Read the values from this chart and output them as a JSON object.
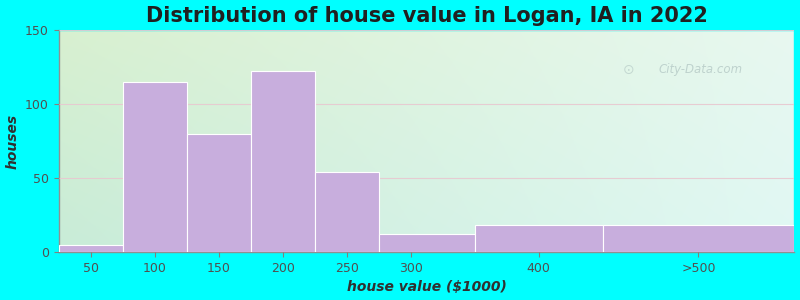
{
  "title": "Distribution of house value in Logan, IA in 2022",
  "xlabel": "house value ($1000)",
  "ylabel": "houses",
  "bar_labels": [
    "50",
    "100",
    "150",
    "200",
    "250",
    "300",
    "400",
    ">500"
  ],
  "bar_heights": [
    5,
    115,
    80,
    122,
    54,
    12,
    18,
    18
  ],
  "bar_left_edges": [
    25,
    75,
    125,
    175,
    225,
    275,
    350,
    450
  ],
  "bar_widths": [
    50,
    50,
    50,
    50,
    50,
    75,
    100,
    150
  ],
  "bar_color": "#c8aedd",
  "bar_edge_color": "#c8aedd",
  "ylim": [
    0,
    150
  ],
  "yticks": [
    0,
    50,
    100,
    150
  ],
  "xticks": [
    50,
    100,
    150,
    200,
    250,
    300,
    400
  ],
  "xlim": [
    25,
    600
  ],
  "background_outer": "#00ffff",
  "grad_top_left": "#d8f0d0",
  "grad_top_right": "#e8f8f0",
  "grad_bot_left": "#c8ecd8",
  "grad_bot_right": "#e0f8f4",
  "title_fontsize": 15,
  "axis_label_fontsize": 10,
  "tick_fontsize": 9,
  "watermark_text": "City-Data.com",
  "watermark_color": "#b8ccc8",
  "grid_color": "#e8c8d0",
  "grid_alpha": 0.9
}
